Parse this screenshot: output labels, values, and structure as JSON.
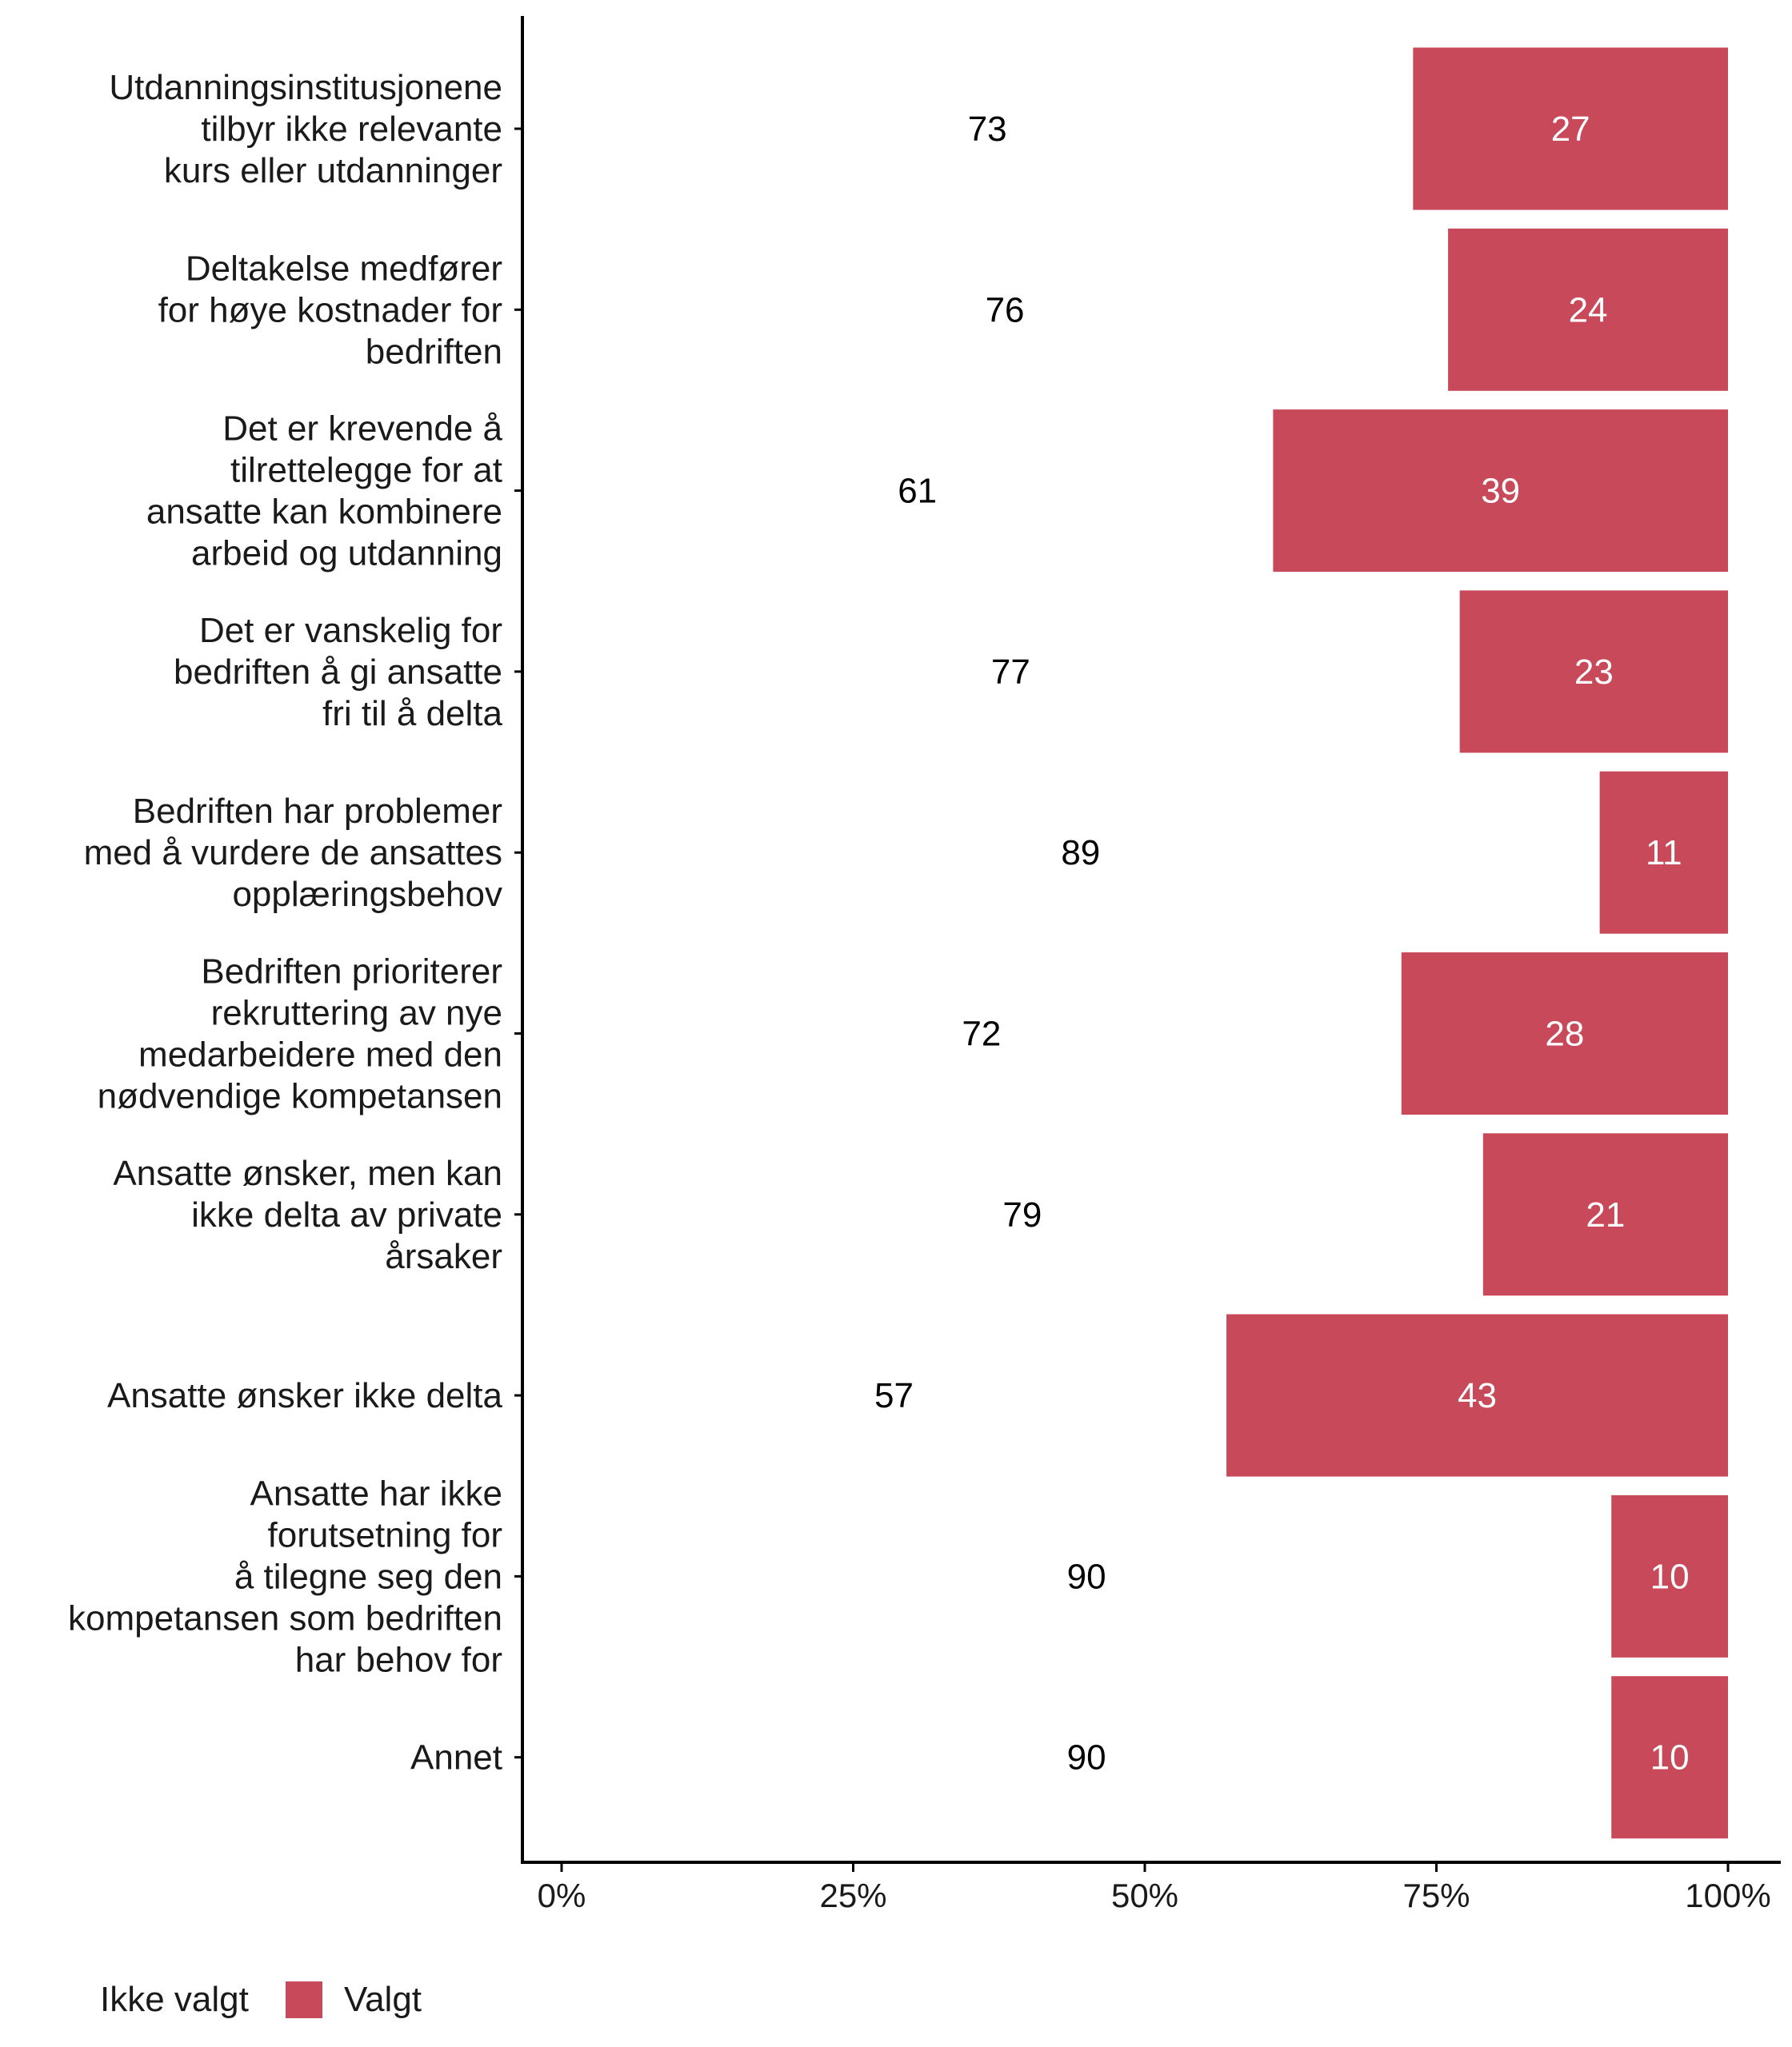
{
  "chart_data": {
    "type": "bar",
    "orientation": "horizontal",
    "stacked": true,
    "title": "",
    "xlabel": "",
    "ylabel": "",
    "xlim": [
      0,
      100
    ],
    "x_ticks": [
      "0%",
      "25%",
      "50%",
      "75%",
      "100%"
    ],
    "x_tick_values": [
      0,
      25,
      50,
      75,
      100
    ],
    "grid": false,
    "legend_position": "bottom-left",
    "categories": [
      [
        "Utdanningsinstitusjonene",
        "tilbyr ikke relevante",
        "kurs eller utdanninger"
      ],
      [
        "Deltakelse medfører",
        "for høye kostnader for",
        "bedriften"
      ],
      [
        "Det er krevende å",
        "tilrettelegge for at",
        "ansatte kan kombinere",
        "arbeid og utdanning"
      ],
      [
        "Det er vanskelig for",
        "bedriften å gi ansatte",
        "fri til å delta"
      ],
      [
        "Bedriften har problemer",
        "med å vurdere de ansattes",
        "opplæringsbehov"
      ],
      [
        "Bedriften prioriterer",
        "rekruttering av nye",
        "medarbeidere med den",
        "nødvendige kompetansen"
      ],
      [
        "Ansatte ønsker, men kan",
        "ikke delta av private",
        "årsaker"
      ],
      [
        "Ansatte ønsker ikke delta"
      ],
      [
        "Ansatte har ikke",
        "forutsetning for",
        "å tilegne seg den",
        "kompetansen som bedriften",
        "har behov for"
      ],
      [
        "Annet"
      ]
    ],
    "series": [
      {
        "name": "Ikke valgt",
        "color": "#ffffff",
        "label_color": "#000000",
        "values": [
          73,
          76,
          61,
          77,
          89,
          72,
          79,
          57,
          90,
          90
        ]
      },
      {
        "name": "Valgt",
        "color": "#c84a5a",
        "label_color": "#ffffff",
        "values": [
          27,
          24,
          39,
          23,
          11,
          28,
          21,
          43,
          10,
          10
        ]
      }
    ]
  },
  "legend": {
    "items": [
      {
        "label": "Ikke valgt",
        "color": null
      },
      {
        "label": "Valgt",
        "color": "#c84a5a"
      }
    ]
  }
}
